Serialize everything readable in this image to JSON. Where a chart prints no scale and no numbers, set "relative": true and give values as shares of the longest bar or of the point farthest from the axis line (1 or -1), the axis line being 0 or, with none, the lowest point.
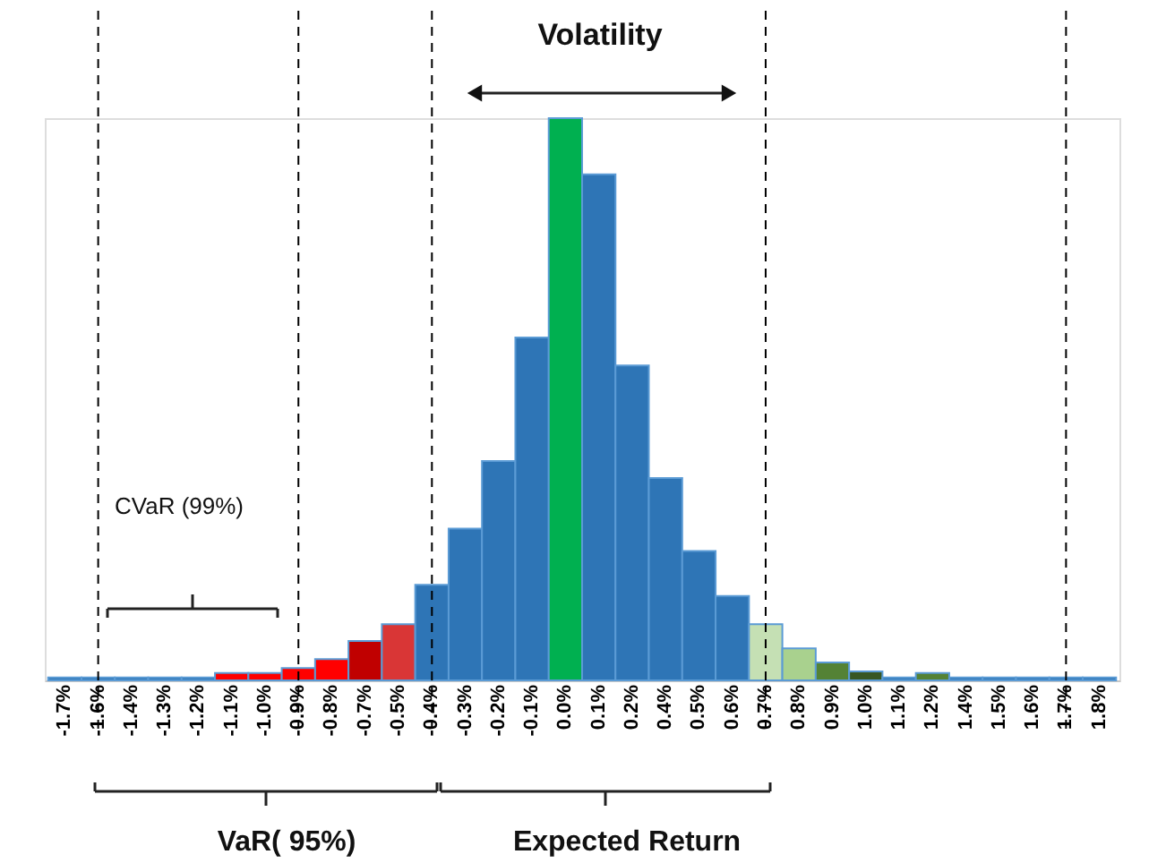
{
  "chart_data": {
    "type": "bar",
    "relative": true,
    "categories": [
      "-1.7%",
      "-1.6%",
      "-1.4%",
      "-1.3%",
      "-1.2%",
      "-1.1%",
      "-1.0%",
      "-0.9%",
      "-0.8%",
      "-0.7%",
      "-0.5%",
      "-0.4%",
      "-0.3%",
      "-0.2%",
      "-0.1%",
      "0.0%",
      "0.1%",
      "0.2%",
      "0.4%",
      "0.5%",
      "0.6%",
      "0.7%",
      "0.8%",
      "0.9%",
      "1.0%",
      "1.1%",
      "1.2%",
      "1.4%",
      "1.5%",
      "1.6%",
      "1.7%",
      "1.8%"
    ],
    "values": [
      0.005,
      0.005,
      0.005,
      0.005,
      0.005,
      0.013,
      0.013,
      0.022,
      0.038,
      0.07,
      0.1,
      0.17,
      0.27,
      0.39,
      0.61,
      1,
      0.9,
      0.56,
      0.36,
      0.23,
      0.15,
      0.1,
      0.057,
      0.032,
      0.016,
      0.005,
      0.013,
      0.005,
      0.005,
      0.005,
      0.005,
      0.005
    ],
    "colors": [
      "#2e75b6",
      "#2e75b6",
      "#2e75b6",
      "#2e75b6",
      "#2e75b6",
      "#ff0000",
      "#ff0000",
      "#ff0000",
      "#ff0000",
      "#c00000",
      "#d93636",
      "#2e75b6",
      "#2e75b6",
      "#2e75b6",
      "#2e75b6",
      "#00b050",
      "#2e75b6",
      "#2e75b6",
      "#2e75b6",
      "#2e75b6",
      "#2e75b6",
      "#c5e0b4",
      "#a9d18e",
      "#548235",
      "#385723",
      "#2e75b6",
      "#548235",
      "#2e75b6",
      "#2e75b6",
      "#2e75b6",
      "#2e75b6",
      "#2e75b6"
    ],
    "annotations": [
      "Volatility",
      "CVaR (99%)",
      "VaR( 95%)",
      "Expected Return"
    ],
    "ref_lines": [
      {
        "axis": "x",
        "value": "-1.6%",
        "color": "#000000",
        "line_style": "dashed"
      },
      {
        "axis": "x",
        "value": "-0.9%",
        "color": "#000000",
        "line_style": "dashed"
      },
      {
        "axis": "x",
        "value": "-0.4%",
        "color": "#000000",
        "line_style": "dashed"
      },
      {
        "axis": "x",
        "value": "0.7%",
        "color": "#000000",
        "line_style": "dashed"
      },
      {
        "axis": "x",
        "value": "1.7%",
        "color": "#000000",
        "line_style": "dashed"
      }
    ],
    "grid": false
  }
}
